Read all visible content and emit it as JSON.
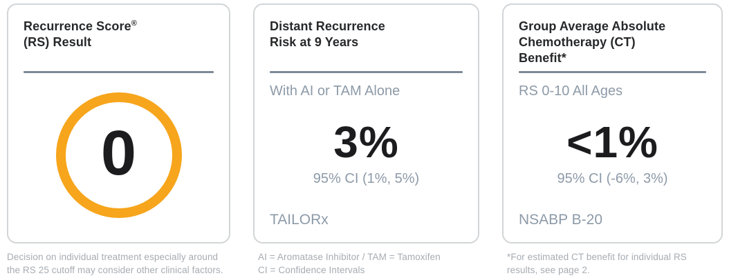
{
  "palette": {
    "orange": "#F6A51C",
    "divider": "#7C8A97",
    "heading": "#27282A",
    "slate": "#8D9AA8",
    "number": "#1C1C1E",
    "footnote": "#A6ACB2",
    "card-border": "#D2D5D7"
  },
  "cards": [
    {
      "title_line1": "Recurrence Score",
      "title_reg": "®",
      "title_line2": "(RS) Result",
      "score": "0",
      "footnote_lines": [
        "Decision on individual treatment especially around",
        "the RS 25 cutoff may consider other clinical factors."
      ]
    },
    {
      "title_line1": "Distant Recurrence",
      "title_line2": "Risk at 9 Years",
      "subheader": "With AI or TAM Alone",
      "value": "3%",
      "ci": "95% CI (1%, 5%)",
      "study": "TAILORx",
      "footnote_lines": [
        "AI = Aromatase Inhibitor / TAM = Tamoxifen",
        "CI = Confidence Intervals"
      ]
    },
    {
      "title_line1": "Group Average Absolute",
      "title_line2": "Chemotherapy (CT)",
      "title_line3": "Benefit*",
      "subheader": "RS 0-10 All Ages",
      "value": "<1%",
      "ci": "95% CI (-6%, 3%)",
      "study": "NSABP B-20",
      "footnote_lines": [
        "*For estimated CT benefit for individual RS",
        "results, see page 2."
      ]
    }
  ]
}
